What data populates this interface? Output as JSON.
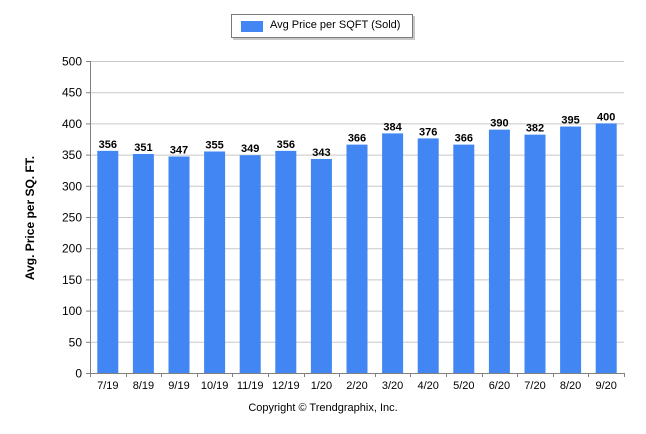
{
  "chart_data": {
    "type": "bar",
    "categories": [
      "7/19",
      "8/19",
      "9/19",
      "10/19",
      "11/19",
      "12/19",
      "1/20",
      "2/20",
      "3/20",
      "4/20",
      "5/20",
      "6/20",
      "7/20",
      "8/20",
      "9/20"
    ],
    "series": [
      {
        "name": "Avg Price per SQFT (Sold)",
        "values": [
          356,
          351,
          347,
          355,
          349,
          356,
          343,
          366,
          384,
          376,
          366,
          390,
          382,
          395,
          400
        ]
      }
    ],
    "title": "",
    "xlabel": "Copyright © Trendgraphix, Inc.",
    "ylabel": "Avg. Price per SQ. FT.",
    "ylim": [
      0,
      500
    ],
    "yticks": [
      0,
      50,
      100,
      150,
      200,
      250,
      300,
      350,
      400,
      450,
      500
    ],
    "grid": true,
    "legend_position": "top-center",
    "data_labels": true,
    "bar_color": "#4286f4"
  }
}
